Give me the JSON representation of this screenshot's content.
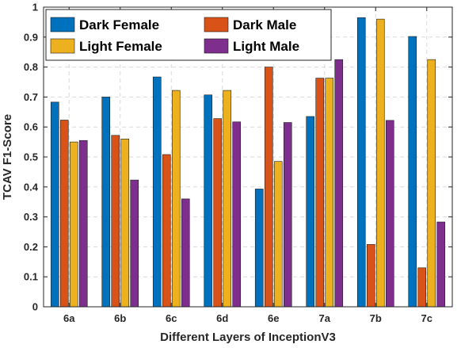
{
  "chart_data": {
    "type": "bar",
    "categories": [
      "6a",
      "6b",
      "6c",
      "6d",
      "6e",
      "7a",
      "7b",
      "7c"
    ],
    "series": [
      {
        "name": "Dark Female",
        "color": "#0072BD",
        "values": [
          0.683,
          0.7,
          0.767,
          0.707,
          0.393,
          0.635,
          0.965,
          0.902
        ]
      },
      {
        "name": "Dark Male",
        "color": "#D95319",
        "values": [
          0.623,
          0.572,
          0.508,
          0.628,
          0.8,
          0.763,
          0.208,
          0.13
        ]
      },
      {
        "name": "Light Female",
        "color": "#EDB120",
        "values": [
          0.55,
          0.56,
          0.722,
          0.722,
          0.485,
          0.763,
          0.96,
          0.825
        ]
      },
      {
        "name": "Light Male",
        "color": "#7E2F8E",
        "values": [
          0.555,
          0.423,
          0.36,
          0.617,
          0.615,
          0.825,
          0.622,
          0.283
        ]
      }
    ],
    "xlabel": "Different Layers of InceptionV3",
    "ylabel": "TCAV F1-Score",
    "ylim": [
      0,
      1
    ],
    "yticks": [
      "0",
      "0.1",
      "0.2",
      "0.3",
      "0.4",
      "0.5",
      "0.6",
      "0.7",
      "0.8",
      "0.9",
      "1"
    ],
    "grid": true,
    "legend_position": "top-left"
  }
}
